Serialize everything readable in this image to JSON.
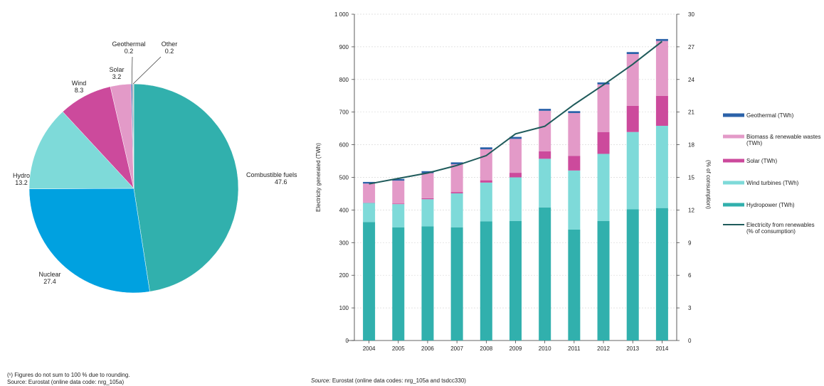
{
  "chart_data": [
    {
      "type": "pie",
      "slices": [
        {
          "label": "Combustible fuels",
          "value": 47.6,
          "display": "47.6",
          "color": "#31b0ad"
        },
        {
          "label": "Nuclear",
          "value": 27.4,
          "display": "27.4",
          "color": "#00a1e0"
        },
        {
          "label": "Hydro",
          "value": 13.2,
          "display": "13.2",
          "color": "#7edad9"
        },
        {
          "label": "Wind",
          "value": 8.3,
          "display": "8.3",
          "color": "#cc4a9c"
        },
        {
          "label": "Solar",
          "value": 3.2,
          "display": "3.2",
          "color": "#e39ac8"
        },
        {
          "label": "Geothermal",
          "value": 0.2,
          "display": "0.2",
          "color": "#2b62a9"
        },
        {
          "label": "Other",
          "value": 0.2,
          "display": "0.2",
          "color": "#c0c0c0"
        }
      ],
      "footnotes": [
        "(¹) Figures do not sum to 100 % due to rounding.",
        "Source: Eurostat (online data code: nrg_105a)"
      ]
    },
    {
      "type": "bar",
      "stacked": true,
      "categories": [
        "2004",
        "2005",
        "2006",
        "2007",
        "2008",
        "2009",
        "2010",
        "2011",
        "2012",
        "2013",
        "2014"
      ],
      "ylabel": "Electricity generated (TWh)",
      "y2label": "(% of consumption)",
      "ylim": [
        0,
        1000
      ],
      "y2lim": [
        0,
        30
      ],
      "yticks": [
        "0",
        "100",
        "200",
        "300",
        "400",
        "500",
        "600",
        "700",
        "800",
        "900",
        "1 000"
      ],
      "y2ticks": [
        "0",
        "3",
        "6",
        "9",
        "12",
        "15",
        "18",
        "21",
        "24",
        "27",
        "30"
      ],
      "grid": true,
      "legend_position": "right",
      "series": [
        {
          "name": "Hydropower (TWh)",
          "color": "#31b0ad",
          "values": [
            363,
            347,
            350,
            347,
            365,
            366,
            408,
            340,
            366,
            402,
            406
          ]
        },
        {
          "name": "Wind turbines (TWh)",
          "color": "#7edad9",
          "values": [
            59,
            71,
            83,
            104,
            119,
            134,
            149,
            181,
            206,
            237,
            252
          ]
        },
        {
          "name": "Solar (TWh)",
          "color": "#cc4a9c",
          "values": [
            1,
            2,
            3,
            4,
            7,
            14,
            23,
            45,
            67,
            80,
            92
          ]
        },
        {
          "name": "Biomass & renewable wastes (TWh)",
          "color": "#e39ac8",
          "values": [
            58,
            70,
            77,
            85,
            95,
            104,
            124,
            131,
            146,
            159,
            168
          ]
        },
        {
          "name": "Geothermal (TWh)",
          "color": "#2b62a9",
          "values": [
            5,
            5,
            6,
            6,
            6,
            6,
            6,
            6,
            6,
            6,
            6
          ]
        }
      ],
      "line": {
        "name": "Electricity from renewables (% of consumption)",
        "color": "#1f5b5b",
        "values": [
          14.4,
          14.9,
          15.4,
          16.1,
          17.0,
          19.0,
          19.7,
          21.7,
          23.5,
          25.4,
          27.5
        ]
      },
      "legend": [
        {
          "label": "Geothermal (TWh)",
          "color": "#2b62a9",
          "kind": "bar"
        },
        {
          "label": "Biomass & renewable wastes (TWh)",
          "color": "#e39ac8",
          "kind": "bar"
        },
        {
          "label": "Solar (TWh)",
          "color": "#cc4a9c",
          "kind": "bar"
        },
        {
          "label": "Wind turbines (TWh)",
          "color": "#7edad9",
          "kind": "bar"
        },
        {
          "label": "Hydropower (TWh)",
          "color": "#31b0ad",
          "kind": "bar"
        },
        {
          "label": "Electricity from renewables (% of consumption)",
          "color": "#1f5b5b",
          "kind": "line"
        }
      ],
      "source_label": "Source:",
      "source_text": "Eurostat (online data codes: nrg_105a and tsdcc330)"
    }
  ]
}
